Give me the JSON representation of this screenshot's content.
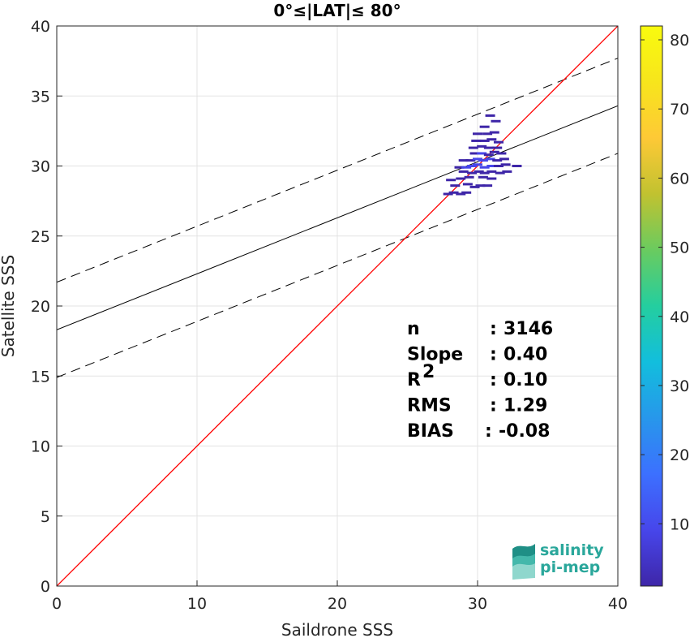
{
  "chart_data": {
    "type": "scatter",
    "title": "0°≤|LAT|≤ 80°",
    "xlabel": "Saildrone SSS",
    "ylabel": "Satellite SSS",
    "xlim": [
      0,
      40
    ],
    "ylim": [
      0,
      40
    ],
    "xticks": [
      0,
      10,
      20,
      30,
      40
    ],
    "yticks": [
      0,
      5,
      10,
      15,
      20,
      25,
      30,
      35,
      40
    ],
    "grid": true,
    "reference_line": {
      "color": "#ff0000",
      "points": [
        [
          0,
          0
        ],
        [
          40,
          40
        ]
      ]
    },
    "fit_line": {
      "intercept": 18.3,
      "slope": 0.4,
      "color": "#000000"
    },
    "fit_bounds": {
      "offset": 3.4,
      "style": "dashed",
      "color": "#000000"
    },
    "colorbar": {
      "min": 1,
      "max": 82,
      "ticks": [
        10,
        20,
        30,
        40,
        50,
        60,
        70,
        80
      ],
      "colors": [
        "#3e26a8",
        "#4746eb",
        "#3c70ff",
        "#2797eb",
        "#12bedd",
        "#24ce9f",
        "#6acb5f",
        "#c1c230",
        "#fec936",
        "#f7e51c",
        "#f9fb0e"
      ]
    },
    "density_points": [
      [
        27.9,
        28.0,
        1
      ],
      [
        28.3,
        28.1,
        1
      ],
      [
        28.8,
        28.0,
        2
      ],
      [
        29.2,
        28.1,
        1
      ],
      [
        28.4,
        28.6,
        1
      ],
      [
        29.3,
        28.7,
        1
      ],
      [
        29.8,
        28.5,
        1
      ],
      [
        30.2,
        28.6,
        2
      ],
      [
        30.7,
        28.6,
        1
      ],
      [
        28.1,
        29.0,
        1
      ],
      [
        28.8,
        29.1,
        2
      ],
      [
        29.4,
        29.2,
        1
      ],
      [
        30.4,
        29.2,
        3
      ],
      [
        31.0,
        29.1,
        1
      ],
      [
        29.0,
        29.6,
        2
      ],
      [
        29.6,
        29.5,
        3
      ],
      [
        30.1,
        29.6,
        4
      ],
      [
        30.5,
        29.5,
        5
      ],
      [
        31.0,
        29.6,
        2
      ],
      [
        31.6,
        29.5,
        1
      ],
      [
        32.1,
        29.6,
        1
      ],
      [
        28.7,
        29.9,
        3
      ],
      [
        29.2,
        29.9,
        6
      ],
      [
        29.6,
        30.0,
        8
      ],
      [
        30.0,
        30.1,
        9
      ],
      [
        30.5,
        29.9,
        7
      ],
      [
        31.0,
        30.0,
        6
      ],
      [
        31.5,
        30.0,
        2
      ],
      [
        32.0,
        30.1,
        1
      ],
      [
        32.8,
        30.0,
        1
      ],
      [
        29.0,
        30.4,
        2
      ],
      [
        29.5,
        30.4,
        4
      ],
      [
        30.0,
        30.5,
        7
      ],
      [
        30.4,
        30.4,
        12
      ],
      [
        30.9,
        30.5,
        8
      ],
      [
        31.4,
        30.4,
        3
      ],
      [
        31.9,
        30.5,
        1
      ],
      [
        29.8,
        30.9,
        3
      ],
      [
        30.3,
        30.9,
        6
      ],
      [
        30.8,
        30.8,
        5
      ],
      [
        31.2,
        31.0,
        3
      ],
      [
        31.7,
        30.9,
        1
      ],
      [
        29.7,
        31.3,
        2
      ],
      [
        30.3,
        31.4,
        4
      ],
      [
        30.8,
        31.3,
        3
      ],
      [
        31.4,
        31.3,
        2
      ],
      [
        29.9,
        31.8,
        1
      ],
      [
        30.5,
        31.8,
        2
      ],
      [
        31.0,
        31.9,
        2
      ],
      [
        31.5,
        31.7,
        1
      ],
      [
        30.0,
        32.3,
        1
      ],
      [
        30.7,
        32.3,
        1
      ],
      [
        31.2,
        32.4,
        1
      ],
      [
        30.5,
        32.8,
        1
      ],
      [
        31.3,
        33.2,
        1
      ],
      [
        30.9,
        33.6,
        1
      ]
    ]
  },
  "stats": [
    {
      "label": "n",
      "sep": ": ",
      "value": "3146",
      "sup": ""
    },
    {
      "label": "Slope",
      "sep": ": ",
      "value": "0.40",
      "sup": ""
    },
    {
      "label": "R",
      "sep": ": ",
      "value": "0.10",
      "sup": "2"
    },
    {
      "label": "RMS",
      "sep": ": ",
      "value": "1.29",
      "sup": ""
    },
    {
      "label": "BIAS",
      "sep": ": ",
      "value": "-0.08",
      "sup": ""
    }
  ],
  "logo": {
    "line1": "salinity",
    "line2": "pi-mep",
    "colors": [
      "#1f8f86",
      "#44b8ab",
      "#8fd7cd",
      "#c9ece7"
    ]
  }
}
